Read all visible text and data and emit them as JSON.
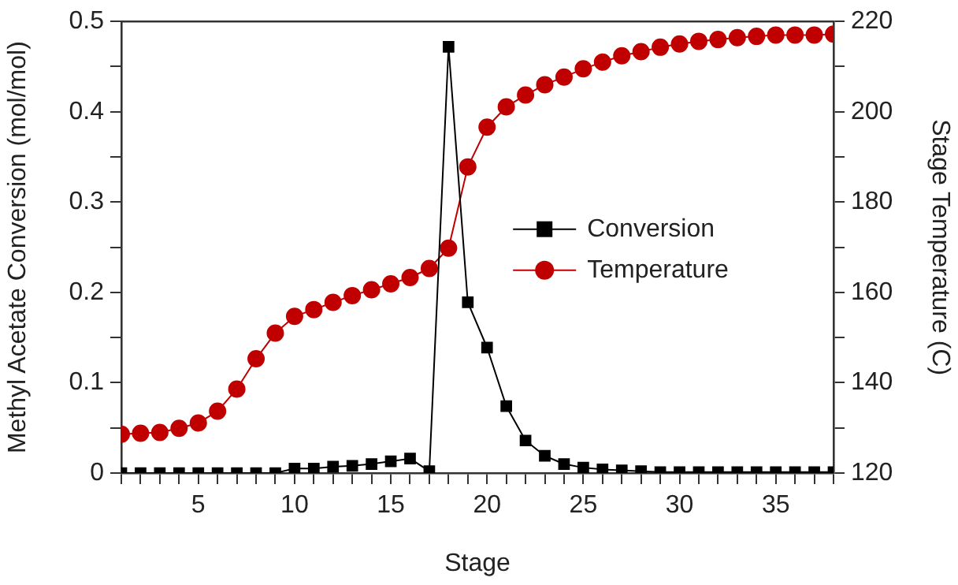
{
  "chart_data": {
    "type": "line",
    "xlabel": "Stage",
    "ylabel": "Methyl Acetate Conversion (mol/mol)",
    "y2label": "Stage Temperature (C)",
    "x": [
      1,
      2,
      3,
      4,
      5,
      6,
      7,
      8,
      9,
      10,
      11,
      12,
      13,
      14,
      15,
      16,
      17,
      18,
      19,
      20,
      21,
      22,
      23,
      24,
      25,
      26,
      27,
      28,
      29,
      30,
      31,
      32,
      33,
      34,
      35,
      36,
      37,
      38
    ],
    "series": [
      {
        "name": "Conversion",
        "color": "#000000",
        "marker": "square",
        "axis": "y",
        "values": [
          0,
          0,
          0,
          0,
          0,
          0,
          0,
          0,
          0,
          0.005,
          0.005,
          0.007,
          0.008,
          0.01,
          0.013,
          0.016,
          0.002,
          0.472,
          0.189,
          0.139,
          0.074,
          0.036,
          0.019,
          0.01,
          0.006,
          0.004,
          0.003,
          0.002,
          0.001,
          0.001,
          0.001,
          0.001,
          0.001,
          0.001,
          0.001,
          0.001,
          0.001,
          0.001
        ]
      },
      {
        "name": "Temperature",
        "color": "#c00000",
        "marker": "circle",
        "axis": "y2",
        "values": [
          128.6,
          128.8,
          129,
          129.9,
          131.1,
          133.7,
          138.6,
          145.3,
          151,
          154.7,
          156.2,
          157.8,
          159.3,
          160.6,
          161.9,
          163.3,
          165.3,
          169.8,
          187.8,
          196.6,
          201.1,
          203.7,
          206,
          207.7,
          209.5,
          211,
          212.4,
          213.3,
          214.3,
          215,
          215.6,
          216,
          216.4,
          216.7,
          217,
          217,
          217,
          217.2
        ]
      }
    ],
    "xlim": [
      1,
      38
    ],
    "xticks": [
      {
        "value": 1,
        "label": null
      },
      {
        "value": 2,
        "label": null
      },
      {
        "value": 3,
        "label": null
      },
      {
        "value": 4,
        "label": null
      },
      5,
      {
        "value": 6,
        "label": null
      },
      {
        "value": 7,
        "label": null
      },
      {
        "value": 8,
        "label": null
      },
      {
        "value": 9,
        "label": null
      },
      10,
      {
        "value": 11,
        "label": null
      },
      {
        "value": 12,
        "label": null
      },
      {
        "value": 13,
        "label": null
      },
      {
        "value": 14,
        "label": null
      },
      15,
      {
        "value": 16,
        "label": null
      },
      {
        "value": 17,
        "label": null
      },
      {
        "value": 18,
        "label": null
      },
      {
        "value": 19,
        "label": null
      },
      20,
      {
        "value": 21,
        "label": null
      },
      {
        "value": 22,
        "label": null
      },
      {
        "value": 23,
        "label": null
      },
      {
        "value": 24,
        "label": null
      },
      25,
      {
        "value": 26,
        "label": null
      },
      {
        "value": 27,
        "label": null
      },
      {
        "value": 28,
        "label": null
      },
      {
        "value": 29,
        "label": null
      },
      30,
      {
        "value": 31,
        "label": null
      },
      {
        "value": 32,
        "label": null
      },
      {
        "value": 33,
        "label": null
      },
      {
        "value": 34,
        "label": null
      },
      35,
      {
        "value": 36,
        "label": null
      },
      {
        "value": 37,
        "label": null
      },
      {
        "value": 38,
        "label": null
      }
    ],
    "ylim": [
      0,
      0.5
    ],
    "yticks": [
      0,
      {
        "value": 0.05,
        "label": null
      },
      0.1,
      {
        "value": 0.15,
        "label": null
      },
      0.2,
      {
        "value": 0.25,
        "label": null
      },
      0.3,
      {
        "value": 0.35,
        "label": null
      },
      0.4,
      {
        "value": 0.45,
        "label": null
      },
      0.5
    ],
    "y2lim": [
      120,
      220
    ],
    "y2ticks": [
      120,
      {
        "value": 130,
        "label": null
      },
      140,
      {
        "value": 150,
        "label": null
      },
      160,
      {
        "value": 170,
        "label": null
      },
      180,
      {
        "value": 190,
        "label": null
      },
      200,
      {
        "value": 210,
        "label": null
      },
      220
    ],
    "grid": false,
    "legend": "center right",
    "line_style": "solid"
  }
}
